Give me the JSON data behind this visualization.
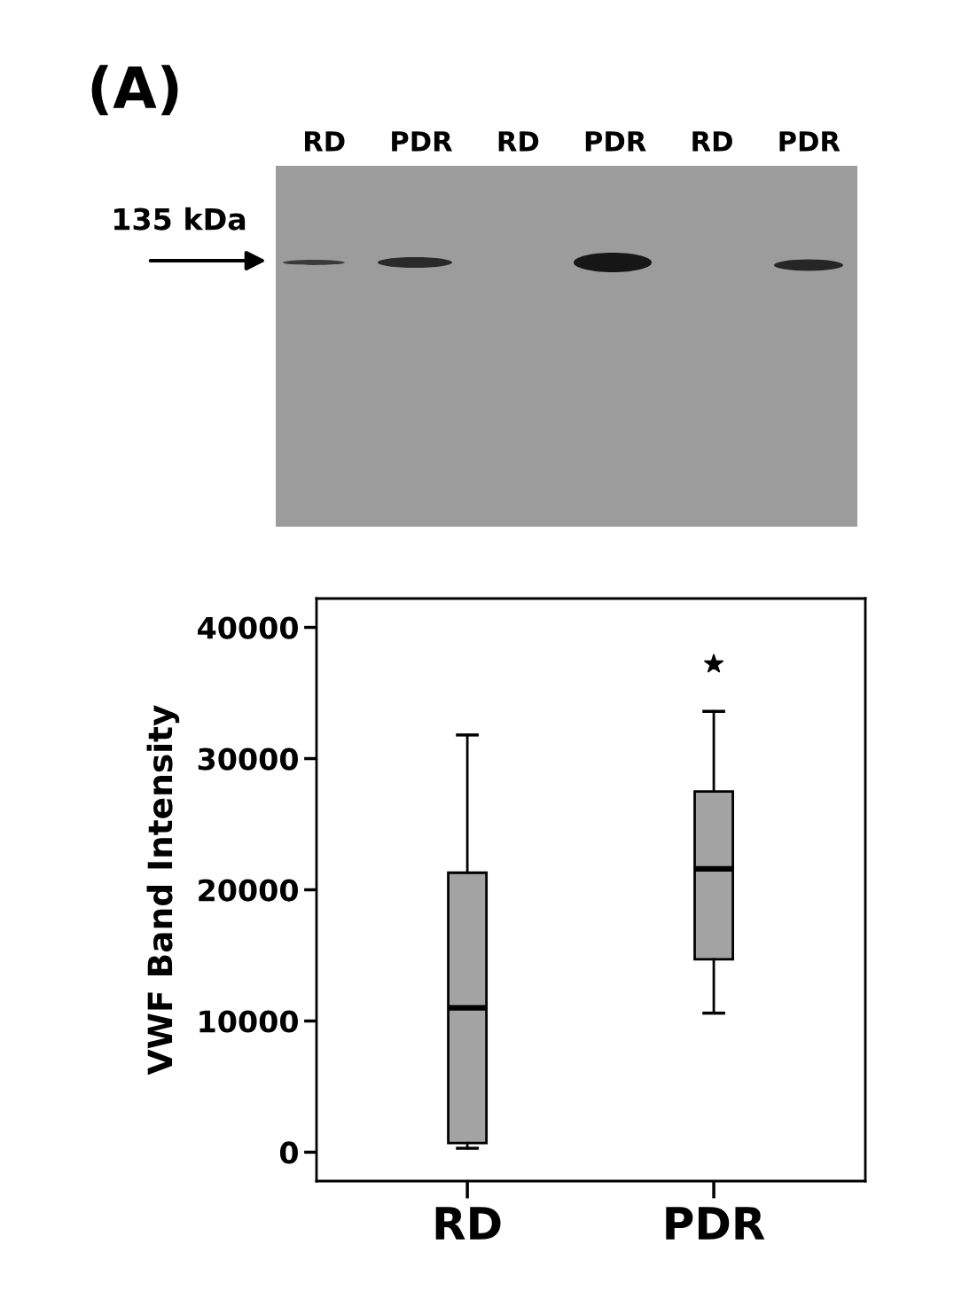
{
  "chart_data": {
    "type": "box",
    "title": "(A)",
    "ylabel": "VWF Band Intensity",
    "categories": [
      "RD",
      "PDR"
    ],
    "boxes": [
      {
        "low": 300,
        "q1": 700,
        "median": 11000,
        "q3": 21300,
        "high": 31800
      },
      {
        "low": 10600,
        "q1": 14700,
        "median": 21600,
        "q3": 27500,
        "high": 33600,
        "outliers": [
          37200
        ]
      }
    ],
    "color": "#a3a3a3",
    "marker": "star",
    "ylim": [
      -2200,
      42200
    ],
    "yticks": [
      0,
      10000,
      20000,
      30000,
      40000
    ],
    "annotations": [
      "135 kDa",
      "RD",
      "PDR",
      "RD",
      "PDR",
      "RD",
      "PDR"
    ]
  }
}
